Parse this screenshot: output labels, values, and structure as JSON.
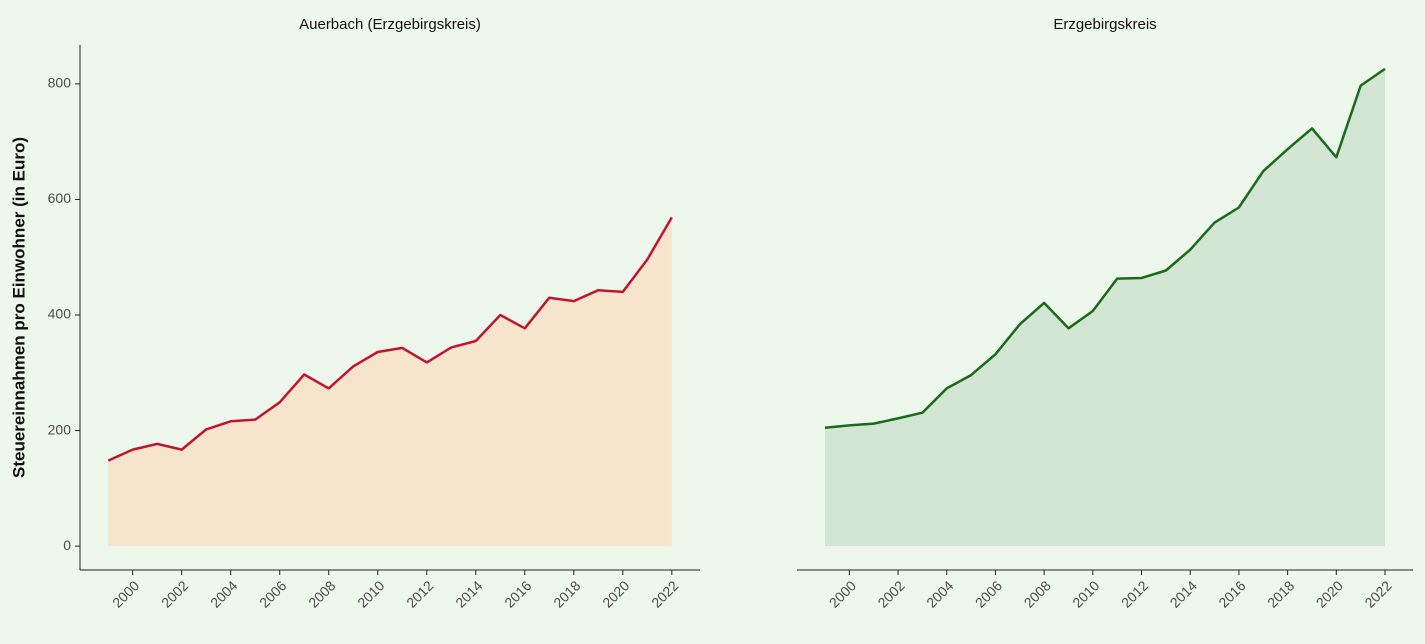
{
  "chart_data": [
    {
      "type": "area",
      "title": "Auerbach (Erzgebirgskreis)",
      "ylabel": "Steuereinnahmen pro Einwohner (in Euro)",
      "x": [
        1999,
        2000,
        2001,
        2002,
        2003,
        2004,
        2005,
        2006,
        2007,
        2008,
        2009,
        2010,
        2011,
        2012,
        2013,
        2014,
        2015,
        2016,
        2017,
        2018,
        2019,
        2020,
        2021,
        2022
      ],
      "values": [
        148,
        167,
        177,
        167,
        202,
        216,
        219,
        249,
        297,
        273,
        311,
        336,
        343,
        318,
        344,
        355,
        400,
        377,
        430,
        424,
        443,
        440,
        496,
        569
      ],
      "color": "#c0152f",
      "fill": "#f7e4cd",
      "xlim": [
        1997.85,
        2023.15
      ],
      "ylim": [
        -41.3,
        867.3
      ],
      "xticks": [
        2000,
        2002,
        2004,
        2006,
        2008,
        2010,
        2012,
        2014,
        2016,
        2018,
        2020,
        2022
      ],
      "yticks": [
        0,
        200,
        400,
        600,
        800
      ]
    },
    {
      "type": "area",
      "title": "Erzgebirgskreis",
      "x": [
        1999,
        2000,
        2001,
        2002,
        2003,
        2004,
        2005,
        2006,
        2007,
        2008,
        2009,
        2010,
        2011,
        2012,
        2013,
        2014,
        2015,
        2016,
        2017,
        2018,
        2019,
        2020,
        2021,
        2022
      ],
      "values": [
        205,
        209,
        212,
        221,
        231,
        273,
        296,
        332,
        384,
        421,
        377,
        407,
        463,
        464,
        477,
        513,
        560,
        586,
        649,
        687,
        723,
        673,
        797,
        826
      ],
      "color": "#1b6a1b",
      "fill": "#d3e6d3",
      "xlim": [
        1997.85,
        2023.15
      ],
      "ylim": [
        -41.3,
        867.3
      ],
      "xticks": [
        2000,
        2002,
        2004,
        2006,
        2008,
        2010,
        2012,
        2014,
        2016,
        2018,
        2020,
        2022
      ]
    }
  ]
}
